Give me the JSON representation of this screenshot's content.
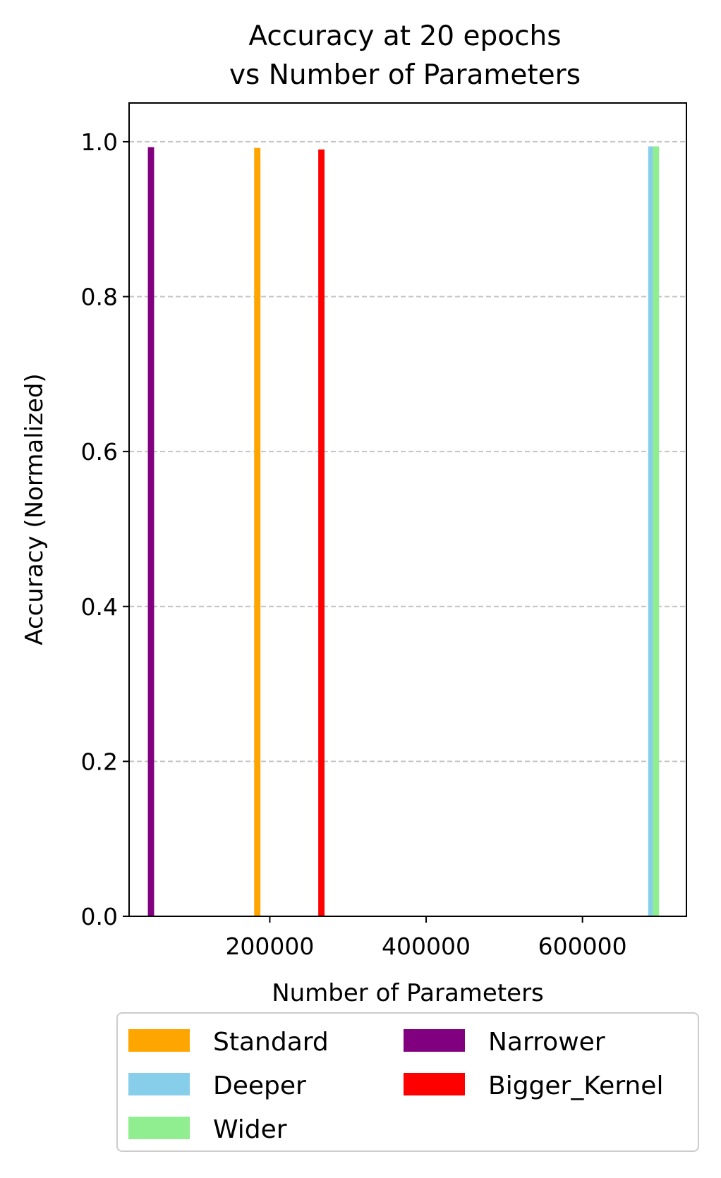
{
  "chart_data": {
    "type": "bar",
    "title_lines": [
      "Accuracy at 20 epochs",
      "vs Number of Parameters"
    ],
    "xlabel": "Number of Parameters",
    "ylabel": "Accuracy (Normalized)",
    "xlim": [
      20000,
      733000
    ],
    "ylim": [
      0,
      1.05
    ],
    "xticks": [
      200000,
      400000,
      600000
    ],
    "xtick_labels": [
      "200000",
      "400000",
      "600000"
    ],
    "yticks": [
      0.0,
      0.2,
      0.4,
      0.6,
      0.8,
      1.0
    ],
    "ytick_labels": [
      "0.0",
      "0.2",
      "0.4",
      "0.6",
      "0.8",
      "1.0"
    ],
    "grid": "y-dashed",
    "legend_position": "below",
    "series": [
      {
        "name": "Standard",
        "x": 184000,
        "value": 0.992,
        "color": "#FFA500"
      },
      {
        "name": "Deeper",
        "x": 688000,
        "value": 0.994,
        "color": "#87CEEB"
      },
      {
        "name": "Wider",
        "x": 694000,
        "value": 0.994,
        "color": "#90EE90"
      },
      {
        "name": "Narrower",
        "x": 48000,
        "value": 0.993,
        "color": "#800080"
      },
      {
        "name": "Bigger_Kernel",
        "x": 266000,
        "value": 0.99,
        "color": "#FF0000"
      }
    ]
  }
}
